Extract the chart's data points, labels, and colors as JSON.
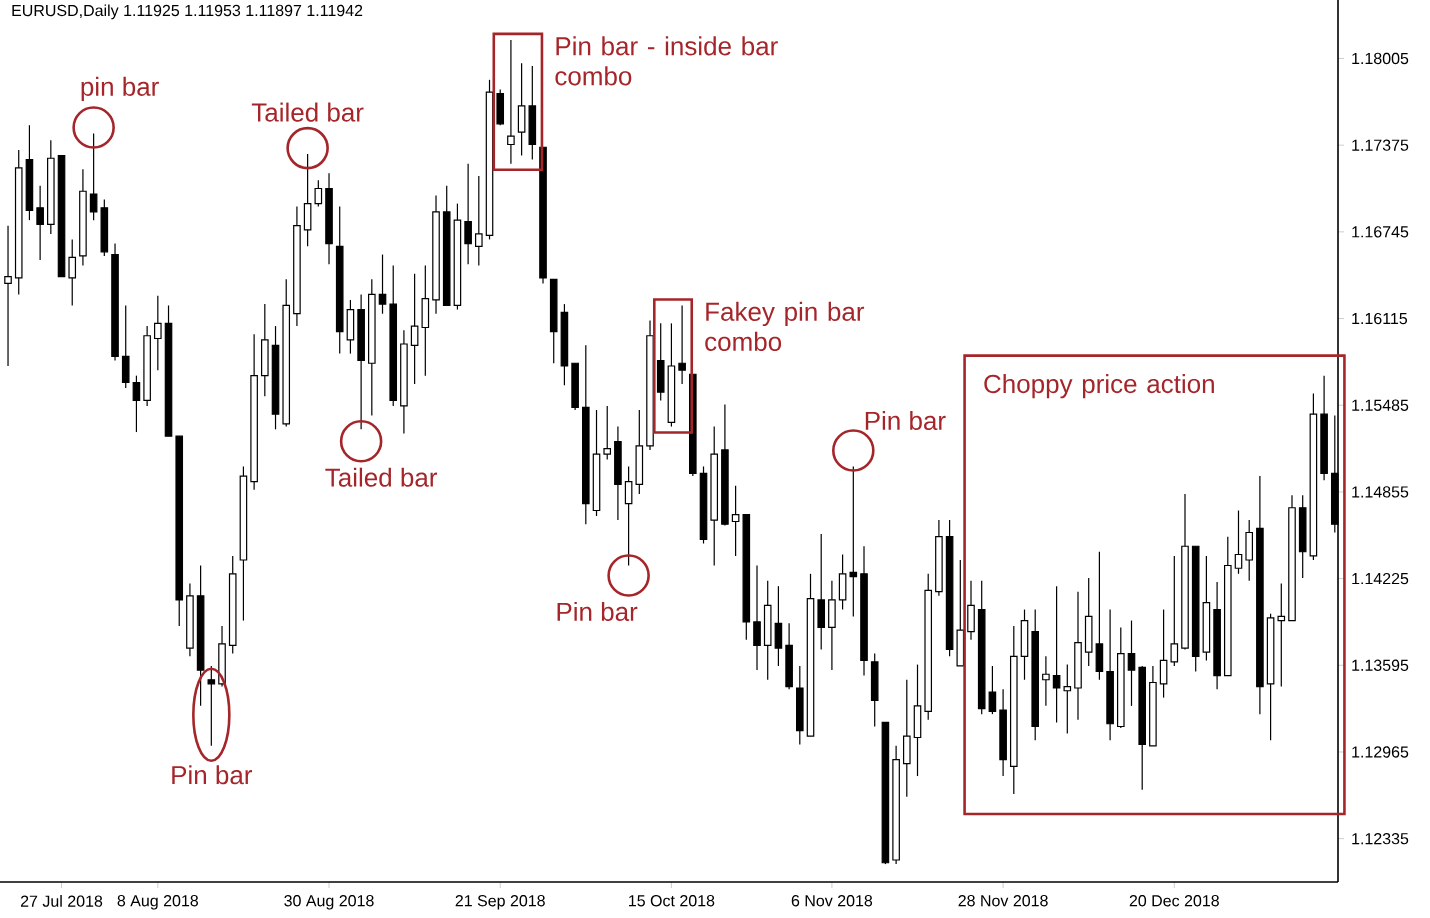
{
  "chart_data": {
    "type": "candlestick",
    "title": "EURUSD,Daily 1.11925 1.11953 1.11897 1.11942",
    "categories": [
      null,
      null,
      null,
      null,
      null,
      "27 Jul 2018",
      null,
      null,
      null,
      null,
      null,
      null,
      null,
      null,
      "8 Aug 2018",
      null,
      null,
      null,
      null,
      null,
      null,
      null,
      null,
      null,
      null,
      null,
      null,
      null,
      null,
      null,
      "30 Aug 2018",
      null,
      null,
      null,
      null,
      null,
      null,
      null,
      null,
      null,
      null,
      null,
      null,
      null,
      null,
      null,
      "21 Sep 2018",
      null,
      null,
      null,
      null,
      null,
      null,
      null,
      null,
      null,
      null,
      null,
      null,
      null,
      null,
      null,
      "15 Oct 2018",
      null,
      null,
      null,
      null,
      null,
      null,
      null,
      null,
      null,
      null,
      null,
      null,
      null,
      null,
      "6 Nov 2018",
      null,
      null,
      null,
      null,
      null,
      null,
      null,
      null,
      null,
      null,
      null,
      null,
      null,
      null,
      null,
      "28 Nov 2018",
      null,
      null,
      null,
      null,
      null,
      null,
      null,
      null,
      null,
      null,
      null,
      null,
      null,
      null,
      null,
      "20 Dec 2018",
      null,
      null,
      null,
      null,
      null,
      null,
      null,
      null,
      null,
      null,
      null,
      null,
      null,
      null,
      null
    ],
    "ohlc": [
      [
        1.1637,
        1.1679,
        1.1577,
        1.1642
      ],
      [
        1.1641,
        1.1734,
        1.1629,
        1.1721
      ],
      [
        1.1727,
        1.1752,
        1.1683,
        1.169
      ],
      [
        1.1692,
        1.1708,
        1.1654,
        1.168
      ],
      [
        1.168,
        1.1741,
        1.1673,
        1.1728
      ],
      [
        1.173,
        1.173,
        1.1642,
        1.1642
      ],
      [
        1.1641,
        1.1669,
        1.1621,
        1.1656
      ],
      [
        1.1657,
        1.172,
        1.165,
        1.1704
      ],
      [
        1.1702,
        1.1746,
        1.1683,
        1.1689
      ],
      [
        1.1692,
        1.1698,
        1.1657,
        1.166
      ],
      [
        1.1658,
        1.1666,
        1.1581,
        1.1584
      ],
      [
        1.1584,
        1.1621,
        1.1561,
        1.1565
      ],
      [
        1.1565,
        1.157,
        1.1529,
        1.1552
      ],
      [
        1.1552,
        1.1606,
        1.1548,
        1.1599
      ],
      [
        1.1597,
        1.1628,
        1.1574,
        1.1608
      ],
      [
        1.1608,
        1.1621,
        1.1526,
        1.1526
      ],
      [
        1.1526,
        1.1526,
        1.1388,
        1.1407
      ],
      [
        1.1372,
        1.1419,
        1.1366,
        1.141
      ],
      [
        1.141,
        1.1432,
        1.133,
        1.1356
      ],
      [
        1.1349,
        1.1359,
        1.1301,
        1.1346
      ],
      [
        1.1346,
        1.1388,
        1.1344,
        1.1375
      ],
      [
        1.1374,
        1.1439,
        1.1368,
        1.1426
      ],
      [
        1.1436,
        1.1504,
        1.1392,
        1.1497
      ],
      [
        1.1493,
        1.16,
        1.1487,
        1.157
      ],
      [
        1.157,
        1.1622,
        1.1555,
        1.1596
      ],
      [
        1.1592,
        1.1606,
        1.1531,
        1.1542
      ],
      [
        1.1535,
        1.164,
        1.1533,
        1.1621
      ],
      [
        1.1615,
        1.1693,
        1.1606,
        1.1679
      ],
      [
        1.1676,
        1.1731,
        1.1664,
        1.1695
      ],
      [
        1.1695,
        1.1712,
        1.1693,
        1.1706
      ],
      [
        1.1706,
        1.1717,
        1.1651,
        1.1666
      ],
      [
        1.1664,
        1.1693,
        1.1586,
        1.1602
      ],
      [
        1.1596,
        1.1625,
        1.1586,
        1.1618
      ],
      [
        1.1618,
        1.1629,
        1.1531,
        1.1581
      ],
      [
        1.1579,
        1.164,
        1.1541,
        1.1629
      ],
      [
        1.1629,
        1.1658,
        1.1615,
        1.1622
      ],
      [
        1.1622,
        1.165,
        1.1548,
        1.1552
      ],
      [
        1.1548,
        1.1603,
        1.1528,
        1.1593
      ],
      [
        1.1592,
        1.1644,
        1.1564,
        1.1606
      ],
      [
        1.1605,
        1.165,
        1.157,
        1.1626
      ],
      [
        1.1625,
        1.1701,
        1.1615,
        1.1689
      ],
      [
        1.1689,
        1.1708,
        1.1621,
        1.1621
      ],
      [
        1.1621,
        1.1695,
        1.1618,
        1.1683
      ],
      [
        1.1682,
        1.1724,
        1.1651,
        1.1666
      ],
      [
        1.1664,
        1.1715,
        1.165,
        1.1673
      ],
      [
        1.1672,
        1.1785,
        1.1669,
        1.1776
      ],
      [
        1.1775,
        1.1778,
        1.1752,
        1.1753
      ],
      [
        1.1738,
        1.1814,
        1.1724,
        1.1744
      ],
      [
        1.1747,
        1.1797,
        1.173,
        1.1766
      ],
      [
        1.1766,
        1.1795,
        1.1727,
        1.1738
      ],
      [
        1.1736,
        1.1736,
        1.1637,
        1.1641
      ],
      [
        1.164,
        1.164,
        1.1579,
        1.1602
      ],
      [
        1.1616,
        1.1622,
        1.1563,
        1.1577
      ],
      [
        1.1579,
        1.1579,
        1.1545,
        1.1547
      ],
      [
        1.1547,
        1.1592,
        1.1462,
        1.1477
      ],
      [
        1.1472,
        1.1545,
        1.1468,
        1.1513
      ],
      [
        1.1513,
        1.1548,
        1.1509,
        1.1517
      ],
      [
        1.1522,
        1.1533,
        1.1465,
        1.1491
      ],
      [
        1.1477,
        1.1504,
        1.1432,
        1.1493
      ],
      [
        1.1491,
        1.1545,
        1.1484,
        1.1519
      ],
      [
        1.1519,
        1.161,
        1.1516,
        1.1599
      ],
      [
        1.1581,
        1.1608,
        1.1552,
        1.1558
      ],
      [
        1.1536,
        1.1608,
        1.1533,
        1.1577
      ],
      [
        1.1579,
        1.1621,
        1.1564,
        1.1574
      ],
      [
        1.1571,
        1.1571,
        1.1497,
        1.1499
      ],
      [
        1.1499,
        1.1504,
        1.1448,
        1.1451
      ],
      [
        1.1465,
        1.1533,
        1.1432,
        1.1513
      ],
      [
        1.1516,
        1.1549,
        1.1461,
        1.1462
      ],
      [
        1.1464,
        1.149,
        1.1439,
        1.1469
      ],
      [
        1.1469,
        1.1469,
        1.1378,
        1.1391
      ],
      [
        1.1391,
        1.1432,
        1.1356,
        1.1374
      ],
      [
        1.1374,
        1.1421,
        1.1349,
        1.1403
      ],
      [
        1.139,
        1.1417,
        1.1359,
        1.1372
      ],
      [
        1.1374,
        1.139,
        1.1342,
        1.1344
      ],
      [
        1.1343,
        1.1359,
        1.1302,
        1.1312
      ],
      [
        1.1308,
        1.1426,
        1.1308,
        1.1408
      ],
      [
        1.1407,
        1.1455,
        1.1371,
        1.1387
      ],
      [
        1.1387,
        1.1421,
        1.1356,
        1.1407
      ],
      [
        1.1407,
        1.144,
        1.14,
        1.1426
      ],
      [
        1.1427,
        1.1504,
        1.1395,
        1.1424
      ],
      [
        1.1426,
        1.1446,
        1.1352,
        1.1363
      ],
      [
        1.1362,
        1.1368,
        1.1315,
        1.1334
      ],
      [
        1.1318,
        1.1318,
        1.1215,
        1.1216
      ],
      [
        1.1218,
        1.1301,
        1.1215,
        1.1291
      ],
      [
        1.1288,
        1.1349,
        1.1264,
        1.1308
      ],
      [
        1.1307,
        1.136,
        1.1279,
        1.133
      ],
      [
        1.1326,
        1.1426,
        1.132,
        1.1414
      ],
      [
        1.1413,
        1.1465,
        1.141,
        1.1453
      ],
      [
        1.1453,
        1.1465,
        1.1366,
        1.1371
      ],
      [
        1.1359,
        1.1436,
        1.1359,
        1.1385
      ],
      [
        1.1384,
        1.1421,
        1.1378,
        1.1403
      ],
      [
        1.14,
        1.1421,
        1.1324,
        1.1328
      ],
      [
        1.134,
        1.1359,
        1.1324,
        1.1326
      ],
      [
        1.1327,
        1.1342,
        1.1279,
        1.1291
      ],
      [
        1.1286,
        1.1388,
        1.1266,
        1.1366
      ],
      [
        1.1366,
        1.14,
        1.1349,
        1.1392
      ],
      [
        1.1384,
        1.14,
        1.1305,
        1.1315
      ],
      [
        1.1349,
        1.1366,
        1.133,
        1.1353
      ],
      [
        1.1352,
        1.1417,
        1.1318,
        1.1343
      ],
      [
        1.1341,
        1.136,
        1.131,
        1.1344
      ],
      [
        1.1343,
        1.1413,
        1.132,
        1.1376
      ],
      [
        1.1369,
        1.1423,
        1.1359,
        1.1395
      ],
      [
        1.1375,
        1.1442,
        1.1349,
        1.1355
      ],
      [
        1.1355,
        1.14,
        1.1305,
        1.1317
      ],
      [
        1.1315,
        1.1387,
        1.1314,
        1.1368
      ],
      [
        1.1368,
        1.1392,
        1.133,
        1.1356
      ],
      [
        1.1358,
        1.1359,
        1.1269,
        1.1302
      ],
      [
        1.1301,
        1.1359,
        1.1301,
        1.1347
      ],
      [
        1.1346,
        1.14,
        1.1336,
        1.1363
      ],
      [
        1.1362,
        1.1439,
        1.1359,
        1.1375
      ],
      [
        1.1372,
        1.1484,
        1.1371,
        1.1446
      ],
      [
        1.1446,
        1.1446,
        1.1355,
        1.1366
      ],
      [
        1.1369,
        1.1439,
        1.1363,
        1.1405
      ],
      [
        1.14,
        1.142,
        1.1342,
        1.1352
      ],
      [
        1.1352,
        1.1453,
        1.1352,
        1.1432
      ],
      [
        1.143,
        1.1472,
        1.1426,
        1.144
      ],
      [
        1.1436,
        1.1465,
        1.1421,
        1.1456
      ],
      [
        1.1459,
        1.1497,
        1.1324,
        1.1344
      ],
      [
        1.1346,
        1.1397,
        1.1305,
        1.1394
      ],
      [
        1.1392,
        1.1419,
        1.1344,
        1.1395
      ],
      [
        1.1392,
        1.1483,
        1.1392,
        1.1474
      ],
      [
        1.1474,
        1.1483,
        1.1423,
        1.1442
      ],
      [
        1.1439,
        1.1557,
        1.1436,
        1.1542
      ],
      [
        1.1542,
        1.157,
        1.1494,
        1.1499
      ],
      [
        1.1499,
        1.1541,
        1.1456,
        1.1462
      ]
    ],
    "color": "#000000",
    "ylim": [
      1.1202,
      1.1843
    ],
    "yticks": [
      1.18005,
      1.17375,
      1.16745,
      1.16115,
      1.15485,
      1.14855,
      1.14225,
      1.13595,
      1.12965,
      1.12335
    ],
    "annotations": [
      "pin bar",
      "Tailed bar",
      "Tailed bar",
      "Pin bar",
      "Pin bar - inside bar combo",
      "Fakey pin bar combo",
      "Pin bar",
      "Pin bar",
      "Choppy price action"
    ]
  }
}
